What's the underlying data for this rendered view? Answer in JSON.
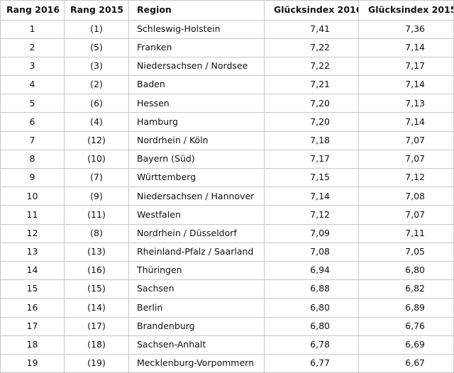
{
  "table": {
    "headers": [
      "Rang 2016",
      "Rang 2015",
      "Region",
      "Glücksindex 2016",
      "Glücksindex 2015"
    ],
    "rows": [
      [
        "1",
        "(1)",
        "Schleswig-Holstein",
        "7,41",
        "7,36"
      ],
      [
        "2",
        "(5)",
        "Franken",
        "7,22",
        "7,14"
      ],
      [
        "3",
        "(3)",
        "Niedersachsen / Nordsee",
        "7,22",
        "7,17"
      ],
      [
        "4",
        "(2)",
        "Baden",
        "7,21",
        "7,14"
      ],
      [
        "5",
        "(6)",
        "Hessen",
        "7,20",
        "7,13"
      ],
      [
        "6",
        "(4)",
        "Hamburg",
        "7,20",
        "7,14"
      ],
      [
        "7",
        "(12)",
        "Nordrhein / Köln",
        "7,18",
        "7,07"
      ],
      [
        "8",
        "(10)",
        "Bayern (Süd)",
        "7,17",
        "7,07"
      ],
      [
        "9",
        "(7)",
        "Württemberg",
        "7,15",
        "7,12"
      ],
      [
        "10",
        "(9)",
        "Niedersachsen / Hannover",
        "7,14",
        "7,08"
      ],
      [
        "11",
        "(11)",
        "Westfalen",
        "7,12",
        "7,07"
      ],
      [
        "12",
        "(8)",
        "Nordrhein / Düsseldorf",
        "7,09",
        "7,11"
      ],
      [
        "13",
        "(13)",
        "Rheinland-Pfalz / Saarland",
        "7,08",
        "7,05"
      ],
      [
        "14",
        "(16)",
        "Thüringen",
        "6,94",
        "6,80"
      ],
      [
        "15",
        "(15)",
        "Sachsen",
        "6,88",
        "6,82"
      ],
      [
        "16",
        "(14)",
        "Berlin",
        "6,80",
        "6,89"
      ],
      [
        "17",
        "(17)",
        "Brandenburg",
        "6,80",
        "6,76"
      ],
      [
        "18",
        "(18)",
        "Sachsen-Anhalt",
        "6,78",
        "6,69"
      ],
      [
        "19",
        "(19)",
        "Mecklenburg-Vorpommern",
        "6,77",
        "6,67"
      ]
    ]
  }
}
